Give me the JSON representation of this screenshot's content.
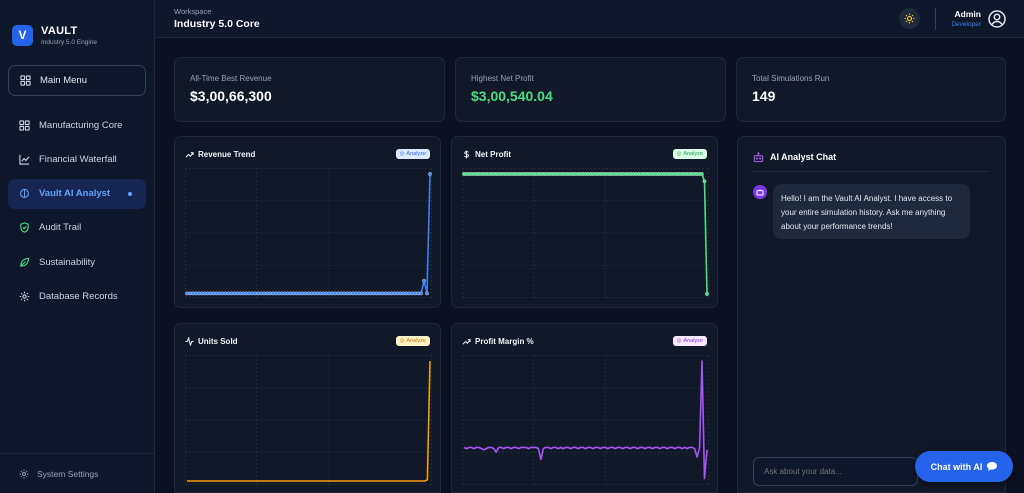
{
  "brand": {
    "initial": "V",
    "name": "VAULT",
    "tagline": "Industry 5.0 Engine"
  },
  "sidebar": {
    "main_menu": "Main Menu",
    "items": [
      {
        "label": "Manufacturing Core",
        "icon": "grid-icon"
      },
      {
        "label": "Financial Waterfall",
        "icon": "line-chart-icon"
      },
      {
        "label": "Vault AI Analyst",
        "icon": "brain-icon",
        "active": true
      },
      {
        "label": "Audit Trail",
        "icon": "shield-icon"
      },
      {
        "label": "Sustainability",
        "icon": "leaf-icon"
      },
      {
        "label": "Database Records",
        "icon": "cog-icon"
      }
    ],
    "footer": "System Settings"
  },
  "topbar": {
    "workspace_label": "Workspace",
    "workspace_name": "Industry 5.0 Core",
    "user_name": "Admin",
    "user_role": "Developer"
  },
  "stats": [
    {
      "label": "All-Time Best Revenue",
      "value": "$3,00,66,300"
    },
    {
      "label": "Highest Net Profit",
      "value": "$3,00,540.04"
    },
    {
      "label": "Total Simulations Run",
      "value": "149"
    }
  ],
  "cards": [
    {
      "title": "Revenue Trend",
      "badge": "Analyze"
    },
    {
      "title": "Net Profit",
      "badge": "Analyze"
    },
    {
      "title": "Units Sold",
      "badge": "Analyze"
    },
    {
      "title": "Profit Margin %",
      "badge": "Analyze"
    }
  ],
  "colors": {
    "accent": "#2563eb",
    "revenue": "#3b82f6",
    "profit": "#4ade80",
    "units": "#f59e0b",
    "margin": "#a855f7"
  },
  "chart_data": [
    {
      "type": "line",
      "title": "Revenue Trend",
      "series": [
        {
          "values": [
            0.5,
            0.5,
            0.5,
            0.5,
            0.5,
            0.5,
            0.5,
            0.5,
            0.5,
            0.5,
            0.5,
            0.5,
            0.5,
            0.5,
            0.5,
            0.5,
            0.5,
            0.5,
            0.5,
            0.5,
            0.5,
            0.5,
            0.5,
            0.5,
            0.5,
            0.5,
            0.5,
            0.5,
            0.5,
            0.5,
            0.5,
            0.5,
            0.5,
            0.5,
            0.5,
            0.5,
            0.5,
            0.5,
            0.5,
            0.5,
            0.5,
            0.5,
            0.5,
            0.5,
            0.5,
            0.5,
            0.5,
            0.5,
            0.5,
            0.5,
            0.5,
            0.5,
            0.5,
            0.5,
            0.5,
            0.5,
            0.5,
            0.5,
            0.5,
            0.5,
            0.5,
            0.5,
            0.5,
            0.5,
            0.5,
            0.5,
            0.5,
            0.5,
            0.5,
            0.5,
            0.5,
            0.5,
            0.5,
            0.5,
            0.5,
            0.5,
            0.5,
            0.5,
            0.5,
            0.5,
            11,
            0.5,
            100
          ]
        }
      ],
      "ylim": [
        0,
        100
      ],
      "markers": true
    },
    {
      "type": "line",
      "title": "Net Profit",
      "series": [
        {
          "values": [
            100,
            100,
            100,
            100,
            100,
            100,
            100,
            100,
            100,
            100,
            100,
            100,
            100,
            100,
            100,
            100,
            100,
            100,
            100,
            100,
            100,
            100,
            100,
            100,
            100,
            100,
            100,
            100,
            100,
            100,
            100,
            100,
            100,
            100,
            100,
            100,
            100,
            100,
            100,
            100,
            100,
            100,
            100,
            100,
            100,
            100,
            100,
            100,
            100,
            100,
            100,
            100,
            100,
            100,
            100,
            100,
            100,
            100,
            100,
            100,
            100,
            100,
            100,
            100,
            100,
            100,
            100,
            100,
            100,
            100,
            100,
            100,
            100,
            100,
            100,
            100,
            100,
            100,
            100,
            100,
            100,
            100,
            100,
            100,
            100,
            100,
            100,
            100,
            100,
            100,
            100,
            100,
            100,
            100,
            100,
            94,
            0
          ]
        }
      ],
      "ylim": [
        0,
        100
      ],
      "markers": true
    },
    {
      "type": "line",
      "title": "Units Sold",
      "series": [
        {
          "values": [
            0,
            0,
            0,
            0,
            0,
            0,
            0,
            0,
            0,
            0,
            0,
            0,
            0,
            0,
            0,
            0,
            0,
            0,
            0,
            0,
            0,
            0,
            0,
            0,
            0,
            0,
            0,
            0,
            0,
            0,
            0,
            0,
            0,
            0,
            0,
            0,
            0,
            0,
            0,
            0,
            0,
            0,
            0,
            0,
            0,
            0,
            0,
            0,
            0,
            0,
            0,
            0,
            0,
            0,
            0,
            0,
            0,
            0,
            0,
            0,
            0,
            0,
            0,
            0,
            0,
            0,
            0,
            0,
            0,
            0,
            0,
            0,
            0,
            0,
            0,
            0,
            0,
            0,
            0,
            0,
            0,
            0,
            0,
            0,
            0,
            0,
            0,
            0,
            0,
            0,
            0,
            0,
            0,
            0,
            1,
            100
          ]
        }
      ],
      "ylim": [
        0,
        100
      ],
      "markers": false
    },
    {
      "type": "line",
      "title": "Profit Margin %",
      "series": [
        {
          "values": [
            28,
            27,
            28,
            28,
            27,
            28,
            28,
            27,
            26,
            27,
            28,
            28,
            27,
            24,
            28,
            28,
            27,
            28,
            28,
            27,
            28,
            28,
            27,
            28,
            28,
            28,
            27,
            28,
            28,
            28,
            27,
            18,
            27,
            28,
            28,
            27,
            28,
            28,
            27,
            28,
            27,
            28,
            28,
            27,
            28,
            28,
            27,
            28,
            28,
            27,
            28,
            28,
            27,
            28,
            28,
            27,
            28,
            28,
            27,
            28,
            28,
            27,
            28,
            28,
            27,
            28,
            28,
            27,
            28,
            28,
            27,
            28,
            28,
            27,
            28,
            28,
            27,
            28,
            28,
            27,
            28,
            28,
            27,
            28,
            28,
            27,
            28,
            28,
            27,
            28,
            27,
            28,
            28,
            27,
            20,
            28,
            100,
            2,
            26
          ]
        }
      ],
      "ylim": [
        0,
        100
      ],
      "markers": false
    }
  ],
  "chat": {
    "title": "AI Analyst Chat",
    "message": "Hello! I am the Vault AI Analyst. I have access to your entire simulation history. Ask me anything about your performance trends!",
    "input_placeholder": "Ask about your data...",
    "fab_label": "Chat with AI"
  }
}
